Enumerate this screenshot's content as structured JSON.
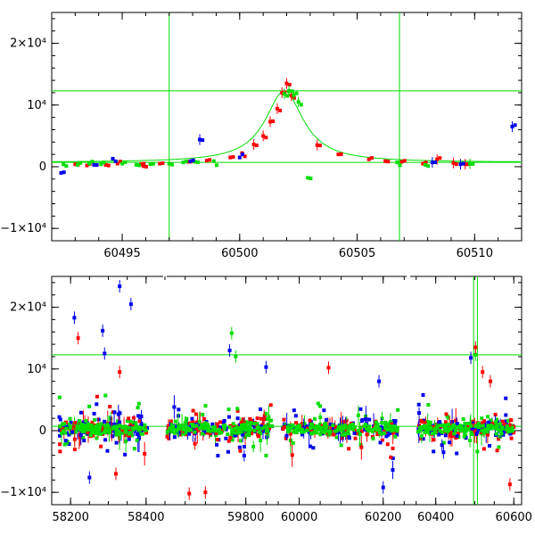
{
  "chart_data": [
    {
      "type": "scatter",
      "title": "",
      "xlabel": "",
      "ylabel": "",
      "xlim": [
        60492,
        60512
      ],
      "ylim": [
        -12000,
        25000
      ],
      "x_ticks": [
        {
          "value": 60495,
          "label": "60495"
        },
        {
          "value": 60500,
          "label": "60500"
        },
        {
          "value": 60505,
          "label": "60505"
        },
        {
          "value": 60510,
          "label": "60510"
        }
      ],
      "y_ticks": [
        {
          "value": 20000,
          "label": "2×10⁴"
        },
        {
          "value": 10000,
          "label": "10⁴"
        },
        {
          "value": 0,
          "label": "0"
        },
        {
          "value": -10000,
          "label": "−1×10⁴"
        }
      ],
      "reference_lines": {
        "horizontal": [
          12300,
          700
        ],
        "vertical": [
          60497,
          60506.8
        ]
      },
      "model_curve": {
        "color": "#00dd00",
        "t0": 60501.9,
        "baseline": 700,
        "peak": 12300,
        "tE": 1.25
      },
      "series": [
        {
          "color": "#ff0000",
          "points": [
            [
              60493.0,
              400
            ],
            [
              60493.5,
              200
            ],
            [
              60494.3,
              300
            ],
            [
              60494.8,
              500
            ],
            [
              60495.8,
              400
            ],
            [
              60495.9,
              100
            ],
            [
              60496.6,
              500
            ],
            [
              60497.8,
              800
            ],
            [
              60498.6,
              1000
            ],
            [
              60499.6,
              1500
            ],
            [
              60500.1,
              2200
            ],
            [
              60500.6,
              3600
            ],
            [
              60501.0,
              5000
            ],
            [
              60501.3,
              7300
            ],
            [
              60501.6,
              9400
            ],
            [
              60501.8,
              12000
            ],
            [
              60502.0,
              13500
            ],
            [
              60502.2,
              11500
            ],
            [
              60503.3,
              3500
            ],
            [
              60504.2,
              2000
            ],
            [
              60505.5,
              1200
            ],
            [
              60506.2,
              900
            ],
            [
              60506.9,
              800
            ],
            [
              60507.8,
              500
            ],
            [
              60508.4,
              1200
            ],
            [
              60509.1,
              600
            ],
            [
              60509.6,
              400
            ]
          ]
        },
        {
          "color": "#00dd00",
          "points": [
            [
              60492.5,
              400
            ],
            [
              60493.1,
              300
            ],
            [
              60493.6,
              500
            ],
            [
              60494.1,
              400
            ],
            [
              60495.0,
              500
            ],
            [
              60495.6,
              300
            ],
            [
              60496.2,
              400
            ],
            [
              60497.0,
              500
            ],
            [
              60497.6,
              700
            ],
            [
              60498.1,
              800
            ],
            [
              60498.9,
              900
            ],
            [
              60501.9,
              11800
            ],
            [
              60502.1,
              12300
            ],
            [
              60502.3,
              11600
            ],
            [
              60502.5,
              10500
            ],
            [
              60502.9,
              -1800
            ],
            [
              60506.7,
              700
            ],
            [
              60507.9,
              300
            ],
            [
              60509.8,
              500
            ]
          ]
        },
        {
          "color": "#0000ee",
          "points": [
            [
              60492.4,
              -1000
            ],
            [
              60493.8,
              300
            ],
            [
              60494.6,
              1300
            ],
            [
              60497.9,
              900
            ],
            [
              60498.3,
              4400
            ],
            [
              60500.0,
              1500
            ],
            [
              60508.2,
              700
            ],
            [
              60509.4,
              400
            ],
            [
              60511.6,
              6500
            ]
          ]
        }
      ]
    },
    {
      "type": "scatter",
      "title": "",
      "xlabel": "",
      "ylabel": "",
      "ylim": [
        -12000,
        25000
      ],
      "segments": [
        {
          "xlim": [
            58150,
            58450
          ],
          "ticks": [
            {
              "value": 58200,
              "label": "58200"
            },
            {
              "value": 58400,
              "label": "58400"
            }
          ]
        },
        {
          "xlim": [
            59600,
            59880
          ],
          "ticks": [
            {
              "value": 59800,
              "label": "59800"
            }
          ]
        },
        {
          "xlim": [
            59950,
            60260
          ],
          "ticks": [
            {
              "value": 60000,
              "label": "60000"
            },
            {
              "value": 60200,
              "label": "60200"
            }
          ]
        },
        {
          "xlim": [
            60330,
            60620
          ],
          "ticks": [
            {
              "value": 60400,
              "label": "60400"
            },
            {
              "value": 60600,
              "label": "60600"
            }
          ]
        }
      ],
      "y_ticks": [
        {
          "value": 20000,
          "label": "2×10⁴"
        },
        {
          "value": 10000,
          "label": "10⁴"
        },
        {
          "value": 0,
          "label": "0"
        },
        {
          "value": -10000,
          "label": "−1×10⁴"
        }
      ],
      "reference_lines": {
        "horizontal": [
          12300,
          700
        ],
        "vertical": [
          60497,
          60506.8
        ]
      },
      "clusters": [
        {
          "segment": 0,
          "x_from": 58170,
          "x_to": 58405
        },
        {
          "segment": 1,
          "x_from": 59605,
          "x_to": 59865
        },
        {
          "segment": 2,
          "x_from": 59960,
          "x_to": 60235
        },
        {
          "segment": 3,
          "x_from": 60355,
          "x_to": 60600
        }
      ],
      "outliers": [
        {
          "color": "#0000ee",
          "x": 58210,
          "y": 18300
        },
        {
          "color": "#0000ee",
          "x": 58330,
          "y": 23400
        },
        {
          "color": "#0000ee",
          "x": 58360,
          "y": 20500
        },
        {
          "color": "#0000ee",
          "x": 58285,
          "y": 16200
        },
        {
          "color": "#0000ee",
          "x": 58290,
          "y": 12500
        },
        {
          "color": "#ff0000",
          "x": 58220,
          "y": 15000
        },
        {
          "color": "#ff0000",
          "x": 58330,
          "y": 9500
        },
        {
          "color": "#0000ee",
          "x": 58250,
          "y": -7600
        },
        {
          "color": "#ff0000",
          "x": 58320,
          "y": -7000
        },
        {
          "color": "#00dd00",
          "x": 59765,
          "y": 15800
        },
        {
          "color": "#0000ee",
          "x": 59760,
          "y": 13000
        },
        {
          "color": "#00dd00",
          "x": 59775,
          "y": 12000
        },
        {
          "color": "#0000ee",
          "x": 59850,
          "y": 10300
        },
        {
          "color": "#ff0000",
          "x": 59660,
          "y": -10200
        },
        {
          "color": "#ff0000",
          "x": 59700,
          "y": -10000
        },
        {
          "color": "#0000ee",
          "x": 60190,
          "y": 8000
        },
        {
          "color": "#0000ee",
          "x": 60200,
          "y": -9200
        },
        {
          "color": "#ff0000",
          "x": 60070,
          "y": 10200
        },
        {
          "color": "#0000ee",
          "x": 60490,
          "y": 11800
        },
        {
          "color": "#00dd00",
          "x": 60502,
          "y": 12300
        },
        {
          "color": "#ff0000",
          "x": 60502,
          "y": 13500
        },
        {
          "color": "#ff0000",
          "x": 60520,
          "y": 9500
        },
        {
          "color": "#ff0000",
          "x": 60590,
          "y": -8700
        },
        {
          "color": "#0000ee",
          "x": 60420,
          "y": -3500
        },
        {
          "color": "#ff0000",
          "x": 60540,
          "y": 8000
        }
      ]
    }
  ]
}
